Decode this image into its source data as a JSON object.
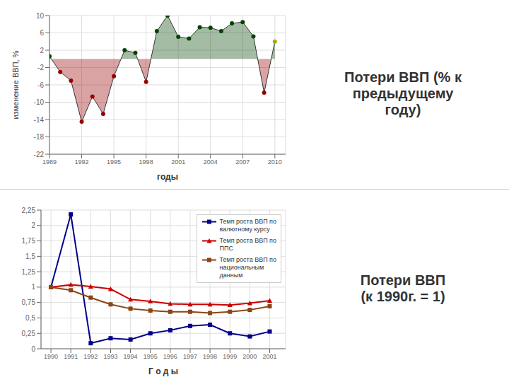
{
  "chart_data": [
    {
      "type": "area",
      "title": "Потери ВВП (% к\nпредыдущему\nгоду)",
      "xlabel": "годы",
      "ylabel": "изменение ВВП, %",
      "x": [
        1989,
        1990,
        1991,
        1992,
        1993,
        1994,
        1995,
        1996,
        1997,
        1998,
        1999,
        2000,
        2001,
        2002,
        2003,
        2004,
        2005,
        2006,
        2007,
        2008,
        2009,
        2010
      ],
      "series": [
        {
          "color": "#333333",
          "marker": "circle",
          "values": [
            0.6,
            -3.0,
            -5.0,
            -14.5,
            -8.7,
            -12.7,
            -4.0,
            2.0,
            1.4,
            -5.3,
            6.4,
            10.0,
            5.1,
            4.7,
            7.3,
            7.2,
            6.4,
            8.2,
            8.5,
            5.2,
            -7.8,
            4.0
          ],
          "colors": [
            "#004400",
            "#990000",
            "#990000",
            "#990000",
            "#990000",
            "#990000",
            "#990000",
            "#004400",
            "#004400",
            "#990000",
            "#004400",
            "#004400",
            "#004400",
            "#004400",
            "#004400",
            "#004400",
            "#004400",
            "#004400",
            "#004400",
            "#004400",
            "#990000",
            "#aaaa00"
          ]
        }
      ],
      "xlim": [
        1989,
        2011
      ],
      "xticks": [
        1989,
        1992,
        1995,
        1998,
        2001,
        2004,
        2007,
        2010
      ],
      "ylim": [
        -22,
        10
      ],
      "yticks": [
        10,
        6,
        2,
        -2,
        -6,
        -10,
        -14,
        -18,
        -22
      ],
      "grid": true
    },
    {
      "type": "line",
      "title": "Потери ВВП\n(к 1990г. = 1)",
      "xlabel": "Г о д ы",
      "x": [
        1990,
        1991,
        1992,
        1993,
        1994,
        1995,
        1996,
        1997,
        1998,
        1999,
        2000,
        2001
      ],
      "series": [
        {
          "name": "Темп роста ВВП по\nвалютному курсу",
          "color": "#00008B",
          "marker": "square",
          "values": [
            1.0,
            2.18,
            0.09,
            0.17,
            0.15,
            0.25,
            0.3,
            0.37,
            0.39,
            0.25,
            0.2,
            0.28
          ]
        },
        {
          "name": "Темп роста ВВП по\nППС",
          "color": "#cc0000",
          "marker": "triangle",
          "values": [
            1.0,
            1.04,
            1.01,
            0.97,
            0.8,
            0.77,
            0.73,
            0.72,
            0.72,
            0.71,
            0.74,
            0.78
          ]
        },
        {
          "name": "Темп роста ВВП по\nнациональным\nданным",
          "color": "#8B4513",
          "marker": "square",
          "values": [
            1.0,
            0.95,
            0.83,
            0.72,
            0.65,
            0.62,
            0.6,
            0.6,
            0.58,
            0.6,
            0.63,
            0.69
          ]
        }
      ],
      "xlim": [
        1989.5,
        2001.8
      ],
      "xticks": [
        1990,
        1991,
        1992,
        1993,
        1994,
        1995,
        1996,
        1997,
        1998,
        1999,
        2000,
        2001
      ],
      "ylim": [
        0,
        2.25
      ],
      "yticks": [
        0,
        {
          "value": 0.25,
          "label": "0,25"
        },
        {
          "value": 0.5,
          "label": "0,5"
        },
        {
          "value": 0.75,
          "label": "0,75"
        },
        1,
        {
          "value": 1.25,
          "label": "1,25"
        },
        {
          "value": 1.5,
          "label": "1,5"
        },
        {
          "value": 1.75,
          "label": "1,75"
        },
        2,
        {
          "value": 2.25,
          "label": "2,25"
        }
      ],
      "grid": true,
      "legend": "upper right"
    }
  ]
}
